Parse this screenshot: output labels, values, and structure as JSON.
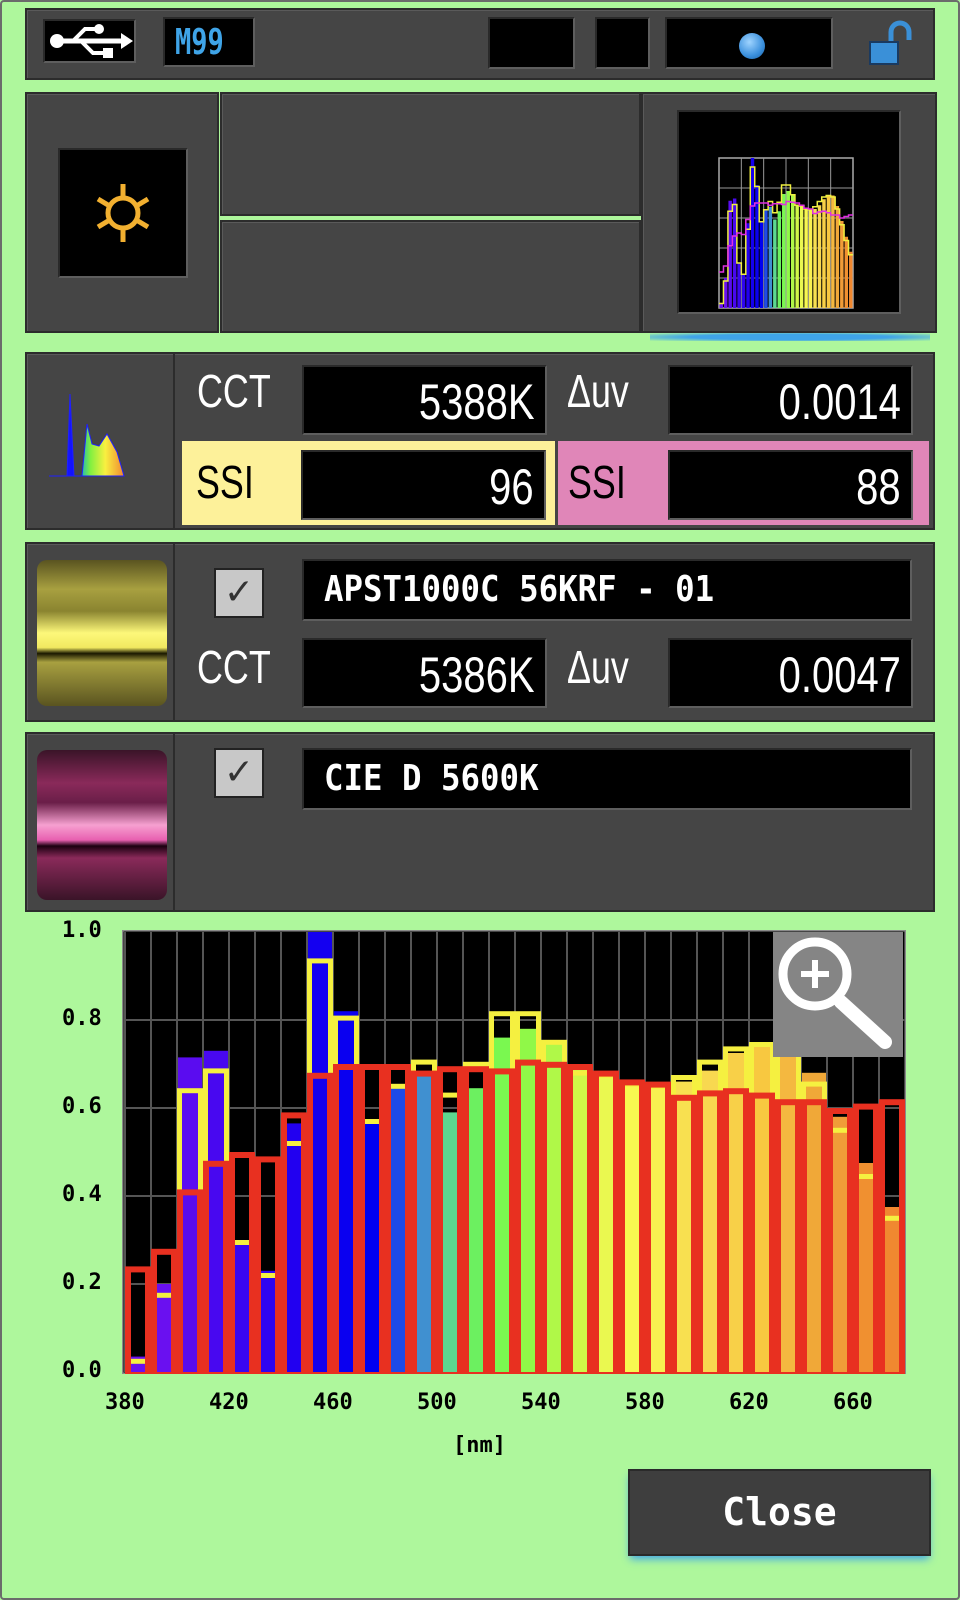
{
  "topbar": {
    "usb_icon": "usb-icon",
    "memory_label": "M99",
    "lock_icon": "unlocked-padlock-icon",
    "accent": "#3fa4e8"
  },
  "mode": {
    "icon": "sun-ambient-icon"
  },
  "measurement": {
    "cct_label": "CCT",
    "cct_value": "5388K",
    "duv_label": "Δuv",
    "duv_value": "0.0014",
    "ssi1_label": "SSI",
    "ssi1_value": "96",
    "ssi2_label": "SSI",
    "ssi2_value": "88"
  },
  "reference1": {
    "checked": true,
    "name": "APST1000C 56KRF - 01",
    "cct_label": "CCT",
    "cct_value": "5386K",
    "duv_label": "Δuv",
    "duv_value": "0.0047",
    "color": "#f5f070"
  },
  "reference2": {
    "checked": true,
    "name": "CIE D 5600K",
    "color": "#e880b8"
  },
  "colors": {
    "background": "#aef79c",
    "panel": "#454545",
    "ssi1_bg": "#fdf19a",
    "ssi2_bg": "#e086b8"
  },
  "chart_data": {
    "type": "bar",
    "xlabel": "[nm]",
    "x_ticks": [
      "380",
      "420",
      "460",
      "500",
      "540",
      "580",
      "620",
      "660"
    ],
    "y_ticks": [
      "1.0",
      "0.8",
      "0.6",
      "0.4",
      "0.2",
      "0.0"
    ],
    "xlim": [
      380,
      680
    ],
    "ylim": [
      0,
      1.0
    ],
    "grid": true,
    "categories": [
      380,
      390,
      400,
      410,
      420,
      430,
      440,
      450,
      460,
      470,
      480,
      490,
      500,
      510,
      520,
      530,
      540,
      550,
      560,
      570,
      580,
      590,
      600,
      610,
      620,
      630,
      640,
      650,
      660,
      670
    ],
    "series": [
      {
        "style": "filled",
        "values": [
          0.035,
          0.2,
          0.715,
          0.73,
          0.3,
          0.23,
          0.565,
          1.0,
          0.82,
          0.57,
          0.65,
          0.675,
          0.59,
          0.645,
          0.76,
          0.78,
          0.75,
          0.69,
          0.68,
          0.66,
          0.655,
          0.66,
          0.685,
          0.725,
          0.75,
          0.75,
          0.68,
          0.58,
          0.475,
          0.375
        ],
        "colors": [
          "#6a10f0",
          "#6a10f0",
          "#5a0cf0",
          "#4808f0",
          "#3a06f0",
          "#2e04f0",
          "#2200f0",
          "#1400f0",
          "#0a00f0",
          "#0000f0",
          "#1e4ae8",
          "#4090d0",
          "#5cd890",
          "#6cf060",
          "#7af850",
          "#90f848",
          "#b0f848",
          "#d0f848",
          "#eaf850",
          "#f8f850",
          "#f8f050",
          "#f8e050",
          "#f8d850",
          "#f8d048",
          "#f8c840",
          "#f4b840",
          "#f0a838",
          "#f09c38",
          "#f09030",
          "#f08830"
        ]
      },
      {
        "style": "outline",
        "color": "#f5f040",
        "values": [
          0.03,
          0.18,
          0.645,
          0.69,
          0.3,
          0.225,
          0.525,
          0.94,
          0.81,
          0.575,
          0.655,
          0.71,
          0.635,
          0.705,
          0.82,
          0.82,
          0.755,
          0.685,
          0.68,
          0.66,
          0.655,
          0.675,
          0.71,
          0.74,
          0.75,
          0.74,
          0.66,
          0.555,
          0.45,
          0.355
        ]
      },
      {
        "style": "outline",
        "color": "#e83020",
        "values": [
          0.24,
          0.28,
          0.415,
          0.48,
          0.5,
          0.49,
          0.59,
          0.68,
          0.7,
          0.7,
          0.7,
          0.685,
          0.695,
          0.695,
          0.69,
          0.71,
          0.705,
          0.7,
          0.685,
          0.665,
          0.66,
          0.63,
          0.64,
          0.645,
          0.635,
          0.62,
          0.62,
          0.6,
          0.61,
          0.62
        ]
      }
    ]
  },
  "zoom_button": {
    "icon": "zoom-in-icon"
  },
  "close_label": "Close"
}
